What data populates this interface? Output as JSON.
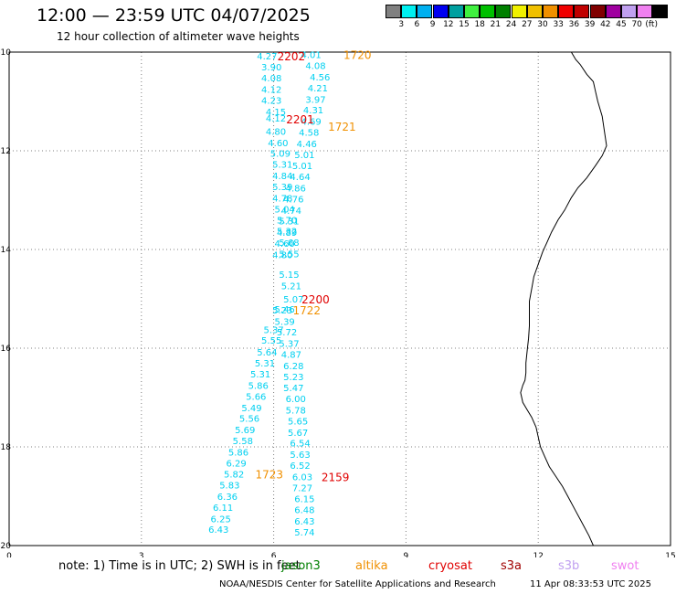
{
  "header": {
    "title": "12:00 — 23:59 UTC 04/07/2025",
    "subtitle": "12 hour collection of altimeter wave heights"
  },
  "colorbar": {
    "unit": "(ft)",
    "swatches": [
      {
        "color": "#808080",
        "label": ""
      },
      {
        "color": "#00f0f0",
        "label": "3"
      },
      {
        "color": "#00b0f0",
        "label": "6"
      },
      {
        "color": "#0000f0",
        "label": "9"
      },
      {
        "color": "#00a0a0",
        "label": "12"
      },
      {
        "color": "#40f040",
        "label": "15"
      },
      {
        "color": "#00c000",
        "label": "18"
      },
      {
        "color": "#008000",
        "label": "21"
      },
      {
        "color": "#f0f000",
        "label": "24"
      },
      {
        "color": "#f0c000",
        "label": "27"
      },
      {
        "color": "#f09000",
        "label": "30"
      },
      {
        "color": "#f00000",
        "label": "33"
      },
      {
        "color": "#c00000",
        "label": "36"
      },
      {
        "color": "#800000",
        "label": "39"
      },
      {
        "color": "#a000a0",
        "label": "42"
      },
      {
        "color": "#c0a0f0",
        "label": "45"
      },
      {
        "color": "#f080f0",
        "label": "70"
      },
      {
        "color": "#000000",
        "label": ""
      }
    ]
  },
  "axes": {
    "x_ticks": [
      "0",
      "3",
      "6",
      "9",
      "12",
      "15"
    ],
    "y_ticks": [
      "-10",
      "-12",
      "-14",
      "-16",
      "-18",
      "-20"
    ],
    "lon_range": [
      0,
      15
    ],
    "lat_range": [
      -20,
      -10
    ]
  },
  "wave_heights": [
    {
      "v": "4.27",
      "lon": 5.85,
      "lat": -10.07
    },
    {
      "v": "3.90",
      "lon": 5.95,
      "lat": -10.3
    },
    {
      "v": "4.08",
      "lon": 5.95,
      "lat": -10.52
    },
    {
      "v": "4.12",
      "lon": 5.95,
      "lat": -10.75
    },
    {
      "v": "4.23",
      "lon": 5.95,
      "lat": -10.97
    },
    {
      "v": "4.15",
      "lon": 6.05,
      "lat": -11.2
    },
    {
      "v": "4.12",
      "lon": 6.05,
      "lat": -11.33
    },
    {
      "v": "4.80",
      "lon": 6.05,
      "lat": -11.6
    },
    {
      "v": "4.60",
      "lon": 6.1,
      "lat": -11.83
    },
    {
      "v": "5.09",
      "lon": 6.15,
      "lat": -12.05
    },
    {
      "v": "5.31",
      "lon": 6.2,
      "lat": -12.27
    },
    {
      "v": "4.84",
      "lon": 6.2,
      "lat": -12.5
    },
    {
      "v": "5.39",
      "lon": 6.2,
      "lat": -12.72
    },
    {
      "v": "4.78",
      "lon": 6.2,
      "lat": -12.95
    },
    {
      "v": "5.04",
      "lon": 6.25,
      "lat": -13.18
    },
    {
      "v": "5.70",
      "lon": 6.3,
      "lat": -13.4
    },
    {
      "v": "5.32",
      "lon": 6.3,
      "lat": -13.62
    },
    {
      "v": "5.68",
      "lon": 6.35,
      "lat": -13.85
    },
    {
      "v": "5.55",
      "lon": 6.35,
      "lat": -14.08
    },
    {
      "v": "5.15",
      "lon": 6.35,
      "lat": -14.5
    },
    {
      "v": "5.21",
      "lon": 6.4,
      "lat": -14.73
    },
    {
      "v": "5.07",
      "lon": 6.45,
      "lat": -15.0
    },
    {
      "v": "5.46",
      "lon": 6.25,
      "lat": -15.2
    },
    {
      "v": "5.37",
      "lon": 6.0,
      "lat": -15.62
    },
    {
      "v": "5.55",
      "lon": 5.95,
      "lat": -15.83
    },
    {
      "v": "5.64",
      "lon": 5.85,
      "lat": -16.07
    },
    {
      "v": "5.31",
      "lon": 5.8,
      "lat": -16.3
    },
    {
      "v": "5.31",
      "lon": 5.7,
      "lat": -16.52
    },
    {
      "v": "5.86",
      "lon": 5.65,
      "lat": -16.75
    },
    {
      "v": "5.66",
      "lon": 5.6,
      "lat": -16.97
    },
    {
      "v": "5.49",
      "lon": 5.5,
      "lat": -17.2
    },
    {
      "v": "5.56",
      "lon": 5.45,
      "lat": -17.42
    },
    {
      "v": "5.69",
      "lon": 5.35,
      "lat": -17.65
    },
    {
      "v": "5.58",
      "lon": 5.3,
      "lat": -17.87
    },
    {
      "v": "5.86",
      "lon": 5.2,
      "lat": -18.1
    },
    {
      "v": "6.29",
      "lon": 5.15,
      "lat": -18.32
    },
    {
      "v": "5.82",
      "lon": 5.1,
      "lat": -18.55
    },
    {
      "v": "5.83",
      "lon": 5.0,
      "lat": -18.77
    },
    {
      "v": "6.36",
      "lon": 4.95,
      "lat": -19.0
    },
    {
      "v": "6.11",
      "lon": 4.85,
      "lat": -19.22
    },
    {
      "v": "6.25",
      "lon": 4.8,
      "lat": -19.45
    },
    {
      "v": "6.43",
      "lon": 4.75,
      "lat": -19.67
    },
    {
      "v": "4.01",
      "lon": 6.85,
      "lat": -10.05
    },
    {
      "v": "4.08",
      "lon": 6.95,
      "lat": -10.27
    },
    {
      "v": "4.56",
      "lon": 7.05,
      "lat": -10.5
    },
    {
      "v": "4.21",
      "lon": 7.0,
      "lat": -10.72
    },
    {
      "v": "3.97",
      "lon": 6.95,
      "lat": -10.95
    },
    {
      "v": "4.31",
      "lon": 6.9,
      "lat": -11.17
    },
    {
      "v": "4.69",
      "lon": 6.85,
      "lat": -11.4
    },
    {
      "v": "4.58",
      "lon": 6.8,
      "lat": -11.62
    },
    {
      "v": "4.46",
      "lon": 6.75,
      "lat": -11.85
    },
    {
      "v": "5.01",
      "lon": 6.7,
      "lat": -12.07
    },
    {
      "v": "5.01",
      "lon": 6.65,
      "lat": -12.3
    },
    {
      "v": "4.64",
      "lon": 6.6,
      "lat": -12.52
    },
    {
      "v": "4.86",
      "lon": 6.5,
      "lat": -12.75
    },
    {
      "v": "4.76",
      "lon": 6.45,
      "lat": -12.97
    },
    {
      "v": "4.74",
      "lon": 6.4,
      "lat": -13.2
    },
    {
      "v": "5.31",
      "lon": 6.35,
      "lat": -13.42
    },
    {
      "v": "4.89",
      "lon": 6.3,
      "lat": -13.65
    },
    {
      "v": "4.60",
      "lon": 6.25,
      "lat": -13.87
    },
    {
      "v": "4.80",
      "lon": 6.2,
      "lat": -14.1
    },
    {
      "v": "5.23",
      "lon": 6.2,
      "lat": -15.22
    },
    {
      "v": "5.39",
      "lon": 6.25,
      "lat": -15.45
    },
    {
      "v": "5.72",
      "lon": 6.3,
      "lat": -15.67
    },
    {
      "v": "5.37",
      "lon": 6.35,
      "lat": -15.9
    },
    {
      "v": "4.87",
      "lon": 6.4,
      "lat": -16.12
    },
    {
      "v": "6.28",
      "lon": 6.45,
      "lat": -16.35
    },
    {
      "v": "5.23",
      "lon": 6.45,
      "lat": -16.57
    },
    {
      "v": "5.47",
      "lon": 6.45,
      "lat": -16.8
    },
    {
      "v": "6.00",
      "lon": 6.5,
      "lat": -17.02
    },
    {
      "v": "5.78",
      "lon": 6.5,
      "lat": -17.25
    },
    {
      "v": "5.65",
      "lon": 6.55,
      "lat": -17.47
    },
    {
      "v": "5.67",
      "lon": 6.55,
      "lat": -17.7
    },
    {
      "v": "6.54",
      "lon": 6.6,
      "lat": -17.92
    },
    {
      "v": "5.63",
      "lon": 6.6,
      "lat": -18.15
    },
    {
      "v": "6.52",
      "lon": 6.6,
      "lat": -18.37
    },
    {
      "v": "6.03",
      "lon": 6.65,
      "lat": -18.6
    },
    {
      "v": "7.27",
      "lon": 6.65,
      "lat": -18.82
    },
    {
      "v": "6.15",
      "lon": 6.7,
      "lat": -19.05
    },
    {
      "v": "6.48",
      "lon": 6.7,
      "lat": -19.27
    },
    {
      "v": "6.43",
      "lon": 6.7,
      "lat": -19.5
    },
    {
      "v": "5.74",
      "lon": 6.7,
      "lat": -19.72
    }
  ],
  "pass_times": [
    {
      "label": "2202",
      "color": "#e00000",
      "lon": 6.4,
      "lat": -10.07
    },
    {
      "label": "1720",
      "color": "#f09000",
      "lon": 7.9,
      "lat": -10.05
    },
    {
      "label": "2201",
      "color": "#e00000",
      "lon": 6.6,
      "lat": -11.35
    },
    {
      "label": "1721",
      "color": "#f09000",
      "lon": 7.55,
      "lat": -11.5
    },
    {
      "label": "2200",
      "color": "#e00000",
      "lon": 6.95,
      "lat": -15.0
    },
    {
      "label": "1722",
      "color": "#f09000",
      "lon": 6.75,
      "lat": -15.22
    },
    {
      "label": "1723",
      "color": "#f09000",
      "lon": 5.9,
      "lat": -18.55
    },
    {
      "label": "2159",
      "color": "#e00000",
      "lon": 7.4,
      "lat": -18.6
    }
  ],
  "footer": {
    "note": "note:  1) Time is in UTC; 2) SWH is in feet",
    "satellites": [
      {
        "label": "jason3",
        "color": "#008000"
      },
      {
        "label": "altika",
        "color": "#f09000"
      },
      {
        "label": "cryosat",
        "color": "#e00000"
      },
      {
        "label": "s3a",
        "color": "#a00000"
      },
      {
        "label": "s3b",
        "color": "#c0a0f0"
      },
      {
        "label": "swot",
        "color": "#f080f0"
      }
    ],
    "credit": "NOAA/NESDIS Center for Satellite Applications and Research",
    "timestamp": "11 Apr 08:33:53 UTC 2025"
  },
  "colors": {
    "wave_height_text": "#00d0f0",
    "coastline": "#000000",
    "grid": "#808080"
  }
}
